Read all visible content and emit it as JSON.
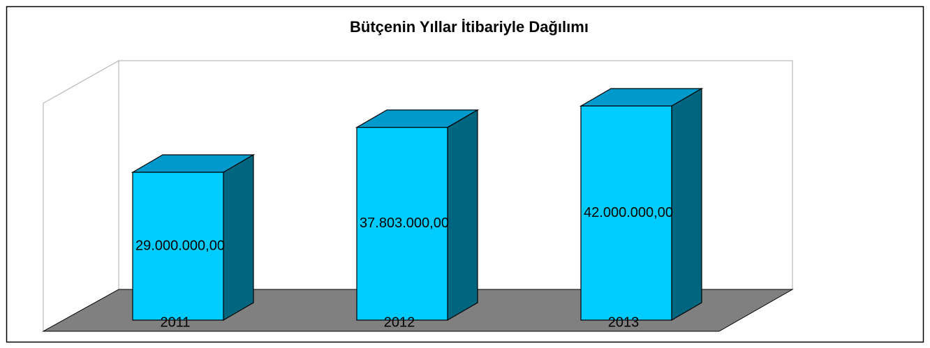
{
  "chart_data": {
    "type": "bar3d",
    "title": "Bütçenin Yıllar İtibariyle Dağılımı",
    "categories": [
      "2011",
      "2012",
      "2013"
    ],
    "values": [
      29000000,
      37803000,
      42000000
    ],
    "value_labels": [
      "29.000.000,00",
      "37.803.000,00",
      "42.000.000,00"
    ],
    "color": "#00ccff"
  }
}
